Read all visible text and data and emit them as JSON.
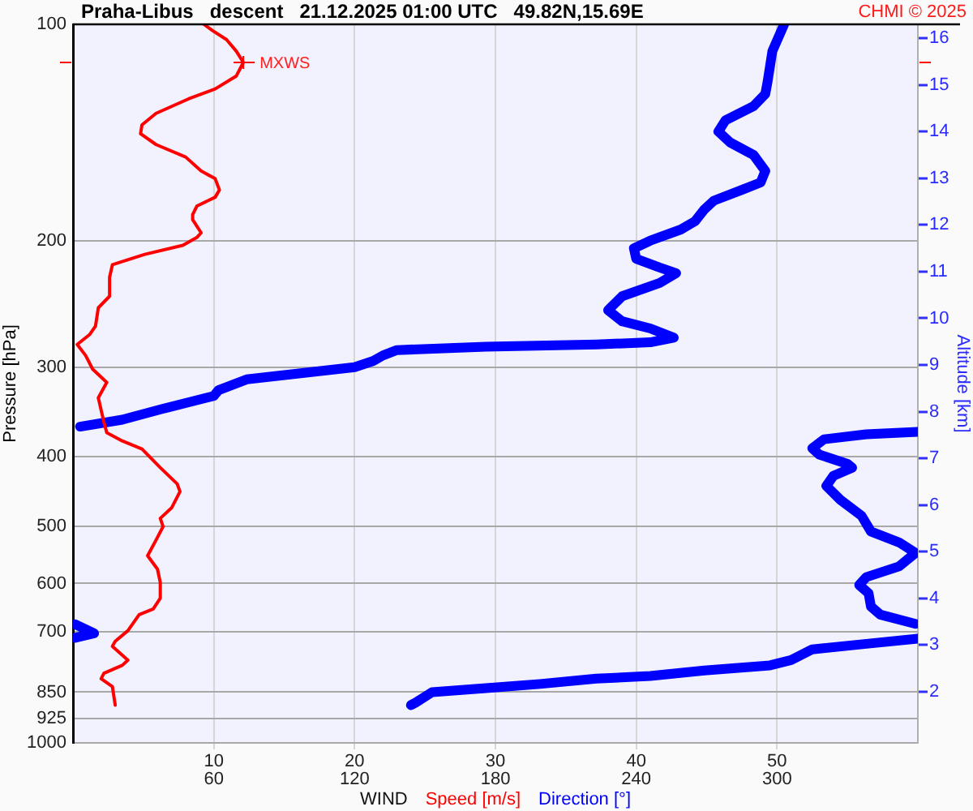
{
  "chart_data": {
    "type": "line",
    "title": "Praha-Libus   descent   21.12.2025 01:00 UTC   49.82N,15.69E",
    "xlabel": "WIND",
    "ylabel": "Pressure [hPa]",
    "y2label": "Altitude [km]",
    "annotations": [
      "CHMI © 2025",
      {
        "text": "MXWS",
        "x": 12.1,
        "y": 113
      }
    ],
    "xlim": [
      0,
      60
    ],
    "xticks": [
      10,
      20,
      30,
      40,
      50
    ],
    "x2lim": [
      0,
      360
    ],
    "x2ticks": [
      60,
      120,
      180,
      240,
      300
    ],
    "ylim": [
      1000,
      100
    ],
    "yticks": [
      100,
      200,
      300,
      400,
      500,
      600,
      700,
      850,
      925,
      1000
    ],
    "y2lim": [
      0.9,
      16.3
    ],
    "y2ticks": [
      2,
      3,
      4,
      5,
      6,
      7,
      8,
      9,
      10,
      11,
      12,
      13,
      14,
      15,
      16
    ],
    "log": "y",
    "grid": true,
    "legend": "bottom",
    "series": [
      {
        "name": "Speed [m/s]",
        "color": "#ff0000",
        "x": [
          9.3,
          9.9,
          10.9,
          11.6,
          12.1,
          11.6,
          10.1,
          8.2,
          5.9,
          4.9,
          4.8,
          5.9,
          8.0,
          9.1,
          10.1,
          10.4,
          10.1,
          8.8,
          8.5,
          8.5,
          9.1,
          8.8,
          7.8,
          5.1,
          2.8,
          2.6,
          2.6,
          1.8,
          1.6,
          1.2,
          0.3,
          0.9,
          1.4,
          2.4,
          1.8,
          2.2,
          2.4,
          3.5,
          4.9,
          6.2,
          7.4,
          7.6,
          7.0,
          6.2,
          6.4,
          5.9,
          5.3,
          6.0,
          6.2,
          6.2,
          5.7,
          4.7,
          3.9,
          3.0,
          2.8,
          3.9,
          3.5,
          2.2,
          2.0,
          2.8,
          3.0
        ],
        "values": [
          100,
          102,
          105,
          109,
          113,
          118,
          123,
          127,
          133,
          138,
          142,
          147,
          153,
          160,
          164,
          170,
          174,
          179,
          184,
          187,
          195,
          198,
          203,
          209,
          216,
          225,
          239,
          248,
          263,
          270,
          279,
          289,
          302,
          315,
          331,
          358,
          370,
          380,
          390,
          414,
          436,
          447,
          471,
          487,
          500,
          522,
          549,
          573,
          598,
          629,
          651,
          663,
          698,
          722,
          734,
          767,
          780,
          800,
          814,
          835,
          886
        ]
      },
      {
        "name": "Direction [°]",
        "color": "#0000ff",
        "axis": "x2",
        "x": [
          303,
          298,
          296,
          295,
          290,
          278,
          275,
          280,
          290,
          295,
          293,
          285,
          273,
          269,
          265,
          259,
          246,
          239,
          240,
          250,
          257,
          250,
          234,
          228,
          234,
          246,
          256,
          246,
          223,
          176,
          138,
          132,
          128,
          120,
          74,
          62,
          60,
          38,
          21,
          3,
          null,
          360,
          338,
          320,
          315,
          318,
          330,
          332,
          324,
          321,
          327,
          336,
          340,
          352,
          359,
          352,
          338,
          335,
          339,
          340,
          344,
          359,
          null,
          1,
          9,
          1,
          null,
          360,
          338,
          315,
          306,
          297,
          269,
          246,
          223,
          199,
          176,
          153,
          146,
          144
        ],
        "values": [
          100,
          109,
          120,
          125,
          130,
          136,
          141,
          146,
          152,
          160,
          166,
          170,
          176,
          181,
          188,
          193,
          200,
          205,
          212,
          218,
          222,
          229,
          239,
          250,
          259,
          265,
          273,
          277,
          279,
          281,
          284,
          289,
          294,
          300,
          312,
          323,
          329,
          343,
          355,
          363,
          null,
          369,
          372,
          378,
          389,
          397,
          409,
          414,
          425,
          439,
          459,
          483,
          508,
          526,
          544,
          568,
          588,
          603,
          619,
          646,
          663,
          683,
          null,
          684,
          704,
          714,
          null,
          716,
          728,
          741,
          767,
          780,
          793,
          807,
          814,
          828,
          839,
          850,
          879,
          886
        ]
      }
    ]
  }
}
